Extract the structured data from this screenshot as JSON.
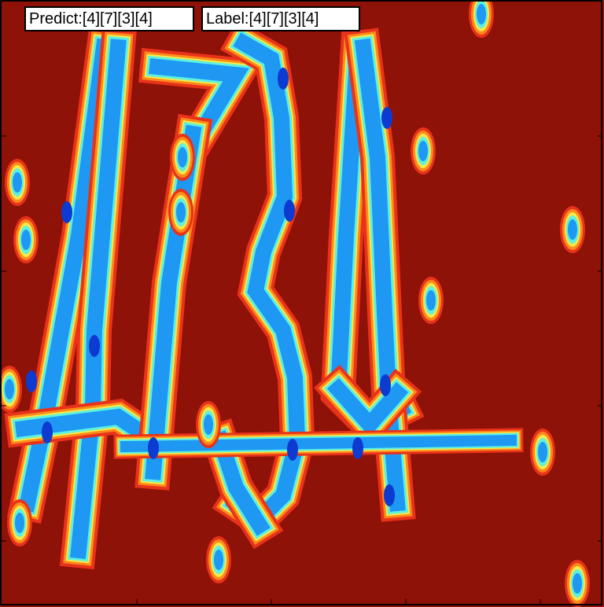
{
  "colors": {
    "background": "#8e1208",
    "ring_red": "#e8321a",
    "ring_orange": "#ff8a1a",
    "ring_yellow": "#f7e94a",
    "ring_cyan": "#5ef0e0",
    "stroke_blue": "#1e98f2",
    "stroke_dark": "#0d3ad0",
    "frame": "#000000"
  },
  "annotations": {
    "predict": "Predict:[4][7][3][4]",
    "label": "Label:[4][7][3][4]"
  }
}
